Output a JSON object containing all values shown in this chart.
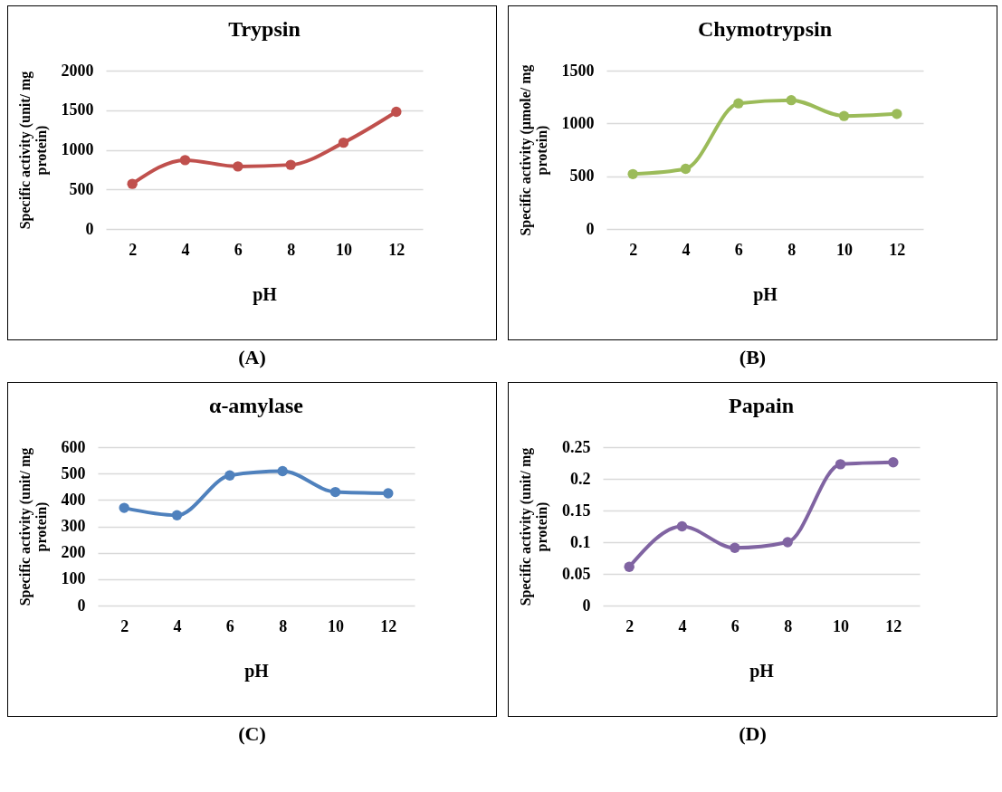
{
  "chart_data": [
    {
      "type": "line",
      "title": "Trypsin",
      "xlabel": "pH",
      "ylabel": "Specific activity (unit/ mg protein)",
      "categories": [
        "2",
        "4",
        "6",
        "8",
        "10",
        "12"
      ],
      "series": [
        {
          "color": "#c0504d",
          "values": [
            570,
            870,
            790,
            810,
            1090,
            1480
          ]
        }
      ],
      "ylim": [
        0,
        2000
      ],
      "yticks": [
        0,
        500,
        1000,
        1500,
        2000
      ],
      "grid": "y",
      "marker": "circle",
      "annotations": [
        "(A)"
      ]
    },
    {
      "type": "line",
      "title": "Chymotrypsin",
      "xlabel": "pH",
      "ylabel": "Specific activity (µmole/ mg protein)",
      "categories": [
        "2",
        "4",
        "6",
        "8",
        "10",
        "12"
      ],
      "series": [
        {
          "color": "#9bbb59",
          "values": [
            520,
            570,
            1190,
            1220,
            1070,
            1090
          ]
        }
      ],
      "ylim": [
        0,
        1500
      ],
      "yticks": [
        0,
        500,
        1000,
        1500
      ],
      "grid": "y",
      "marker": "circle",
      "annotations": [
        "(B)"
      ]
    },
    {
      "type": "line",
      "title": "α-amylase",
      "xlabel": "pH",
      "ylabel": "Specific activity (unit/ mg protein)",
      "categories": [
        "2",
        "4",
        "6",
        "8",
        "10",
        "12"
      ],
      "series": [
        {
          "color": "#4f81bd",
          "values": [
            370,
            342,
            493,
            509,
            430,
            425
          ]
        }
      ],
      "ylim": [
        0,
        600
      ],
      "yticks": [
        0,
        100,
        200,
        300,
        400,
        500,
        600
      ],
      "grid": "y",
      "marker": "circle",
      "annotations": [
        "(C)"
      ]
    },
    {
      "type": "line",
      "title": "Papain",
      "xlabel": "pH",
      "ylabel": "Specific activity (unit/ mg protein)",
      "categories": [
        "2",
        "4",
        "6",
        "8",
        "10",
        "12"
      ],
      "series": [
        {
          "color": "#8064a2",
          "values": [
            0.061,
            0.125,
            0.091,
            0.1,
            0.223,
            0.226
          ]
        }
      ],
      "ylim": [
        0,
        0.25
      ],
      "yticks": [
        0,
        0.05,
        0.1,
        0.15,
        0.2,
        0.25
      ],
      "grid": "y",
      "marker": "circle",
      "annotations": [
        "(D)"
      ]
    }
  ]
}
